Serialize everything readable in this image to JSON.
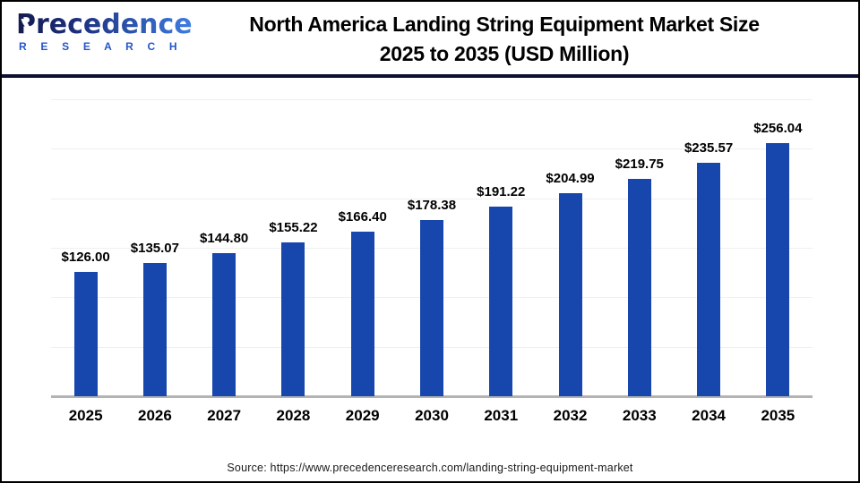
{
  "header": {
    "logo": {
      "name": "Precedence",
      "subname": "R E S E A R C H"
    },
    "title_line1": "North America Landing String Equipment Market Size",
    "title_line2": "2025 to 2035 (USD Million)"
  },
  "chart_data": {
    "type": "bar",
    "title": "North America Landing String Equipment Market Size 2025 to 2035 (USD Million)",
    "categories": [
      "2025",
      "2026",
      "2027",
      "2028",
      "2029",
      "2030",
      "2031",
      "2032",
      "2033",
      "2034",
      "2035"
    ],
    "values": [
      126.0,
      135.07,
      144.8,
      155.22,
      166.4,
      178.38,
      191.22,
      204.99,
      219.75,
      235.57,
      256.04
    ],
    "value_labels": [
      "$126.00",
      "$135.07",
      "$144.80",
      "$155.22",
      "$166.40",
      "$178.38",
      "$191.22",
      "$204.99",
      "$219.75",
      "$235.57",
      "$256.04"
    ],
    "unit": "USD Million",
    "ylim": [
      0,
      300
    ],
    "gridline_values": [
      50,
      100,
      150,
      200,
      250,
      300
    ],
    "grid": true,
    "legend_position": "none",
    "bar_color": "#1746ad"
  },
  "footer": {
    "source": "Source: https://www.precedenceresearch.com/landing-string-equipment-market"
  },
  "colors": {
    "bar": "#1746ad",
    "divider": "#0e1033",
    "gridline": "#efefef",
    "axis_line": "#b3b3b3",
    "logo_research": "#2456c9"
  }
}
